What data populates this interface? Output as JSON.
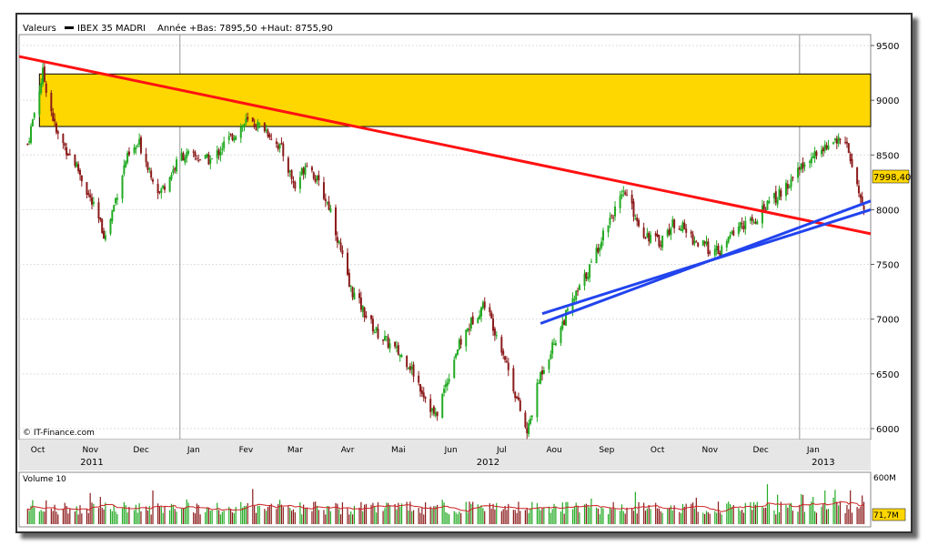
{
  "header": {
    "valeurs_label": "Valeurs",
    "instrument": "IBEX 35 MADRI",
    "stats": "Année +Bas: 7895,50 +Haut: 8755,90"
  },
  "copyright": "© IT-Finance.com",
  "last_price_label": "7998,40",
  "volume": {
    "title": "Volume 10",
    "y_tick_labels": [
      "600M"
    ],
    "last_label": "71,7M"
  },
  "colors": {
    "up": "#22aa22",
    "down": "#8b1a1a",
    "resistance_band": "#ffd700",
    "downtrend_line": "#ff1111",
    "uptrend_lines": "#2244ee",
    "volume_ma": "#cc2222"
  },
  "chart_data": {
    "type": "candlestick",
    "y_ticks": [
      6000,
      6500,
      7000,
      7500,
      8000,
      8500,
      9000,
      9500
    ],
    "ylim": [
      5900,
      9600
    ],
    "x_month_labels": [
      "Oct",
      "Nov",
      "Dec",
      "Jan",
      "Fev",
      "Mar",
      "Avr",
      "Mai",
      "Jun",
      "Jul",
      "Aou",
      "Sep",
      "Oct",
      "Nov",
      "Dec",
      "Jan"
    ],
    "x_year_labels": [
      "2011",
      "2012",
      "2013"
    ],
    "price_path": [
      [
        "2011-10-03",
        8600
      ],
      [
        "2011-10-12",
        9250
      ],
      [
        "2011-10-20",
        8700
      ],
      [
        "2011-11-01",
        8400
      ],
      [
        "2011-11-18",
        7750
      ],
      [
        "2011-11-30",
        8450
      ],
      [
        "2011-12-08",
        8600
      ],
      [
        "2011-12-20",
        8150
      ],
      [
        "2012-01-02",
        8500
      ],
      [
        "2012-01-20",
        8450
      ],
      [
        "2012-01-27",
        8600
      ],
      [
        "2012-02-09",
        8800
      ],
      [
        "2012-02-20",
        8750
      ],
      [
        "2012-03-01",
        8550
      ],
      [
        "2012-03-09",
        8200
      ],
      [
        "2012-03-16",
        8450
      ],
      [
        "2012-03-30",
        8000
      ],
      [
        "2012-04-10",
        7300
      ],
      [
        "2012-04-25",
        6900
      ],
      [
        "2012-05-15",
        6600
      ],
      [
        "2012-05-31",
        6100
      ],
      [
        "2012-06-12",
        6700
      ],
      [
        "2012-06-22",
        7000
      ],
      [
        "2012-06-29",
        7150
      ],
      [
        "2012-07-10",
        6700
      ],
      [
        "2012-07-24",
        5950
      ],
      [
        "2012-08-01",
        6500
      ],
      [
        "2012-08-15",
        7000
      ],
      [
        "2012-08-31",
        7500
      ],
      [
        "2012-09-10",
        7900
      ],
      [
        "2012-09-20",
        8150
      ],
      [
        "2012-09-30",
        7800
      ],
      [
        "2012-10-10",
        7700
      ],
      [
        "2012-10-20",
        7900
      ],
      [
        "2012-11-01",
        7700
      ],
      [
        "2012-11-15",
        7600
      ],
      [
        "2012-11-25",
        7850
      ],
      [
        "2012-12-05",
        7900
      ],
      [
        "2012-12-20",
        8150
      ],
      [
        "2012-12-31",
        8350
      ],
      [
        "2013-01-10",
        8500
      ],
      [
        "2013-01-20",
        8650
      ],
      [
        "2013-01-29",
        8600
      ],
      [
        "2013-02-04",
        8200
      ],
      [
        "2013-02-08",
        7998
      ]
    ],
    "annotations": {
      "resistance_band": {
        "from": 8760,
        "to": 9240,
        "x_start": "2011-10-10",
        "x_end": "2013-02-12"
      },
      "downtrend_line": {
        "x1": "2011-09-28",
        "y1": 9400,
        "x2": "2013-02-12",
        "y2": 7780
      },
      "uptrend_lines": [
        {
          "x1": "2012-08-02",
          "y1": 7050,
          "x2": "2013-02-12",
          "y2": 8000
        },
        {
          "x1": "2012-08-01",
          "y1": 6960,
          "x2": "2013-02-12",
          "y2": 8080
        }
      ]
    }
  }
}
